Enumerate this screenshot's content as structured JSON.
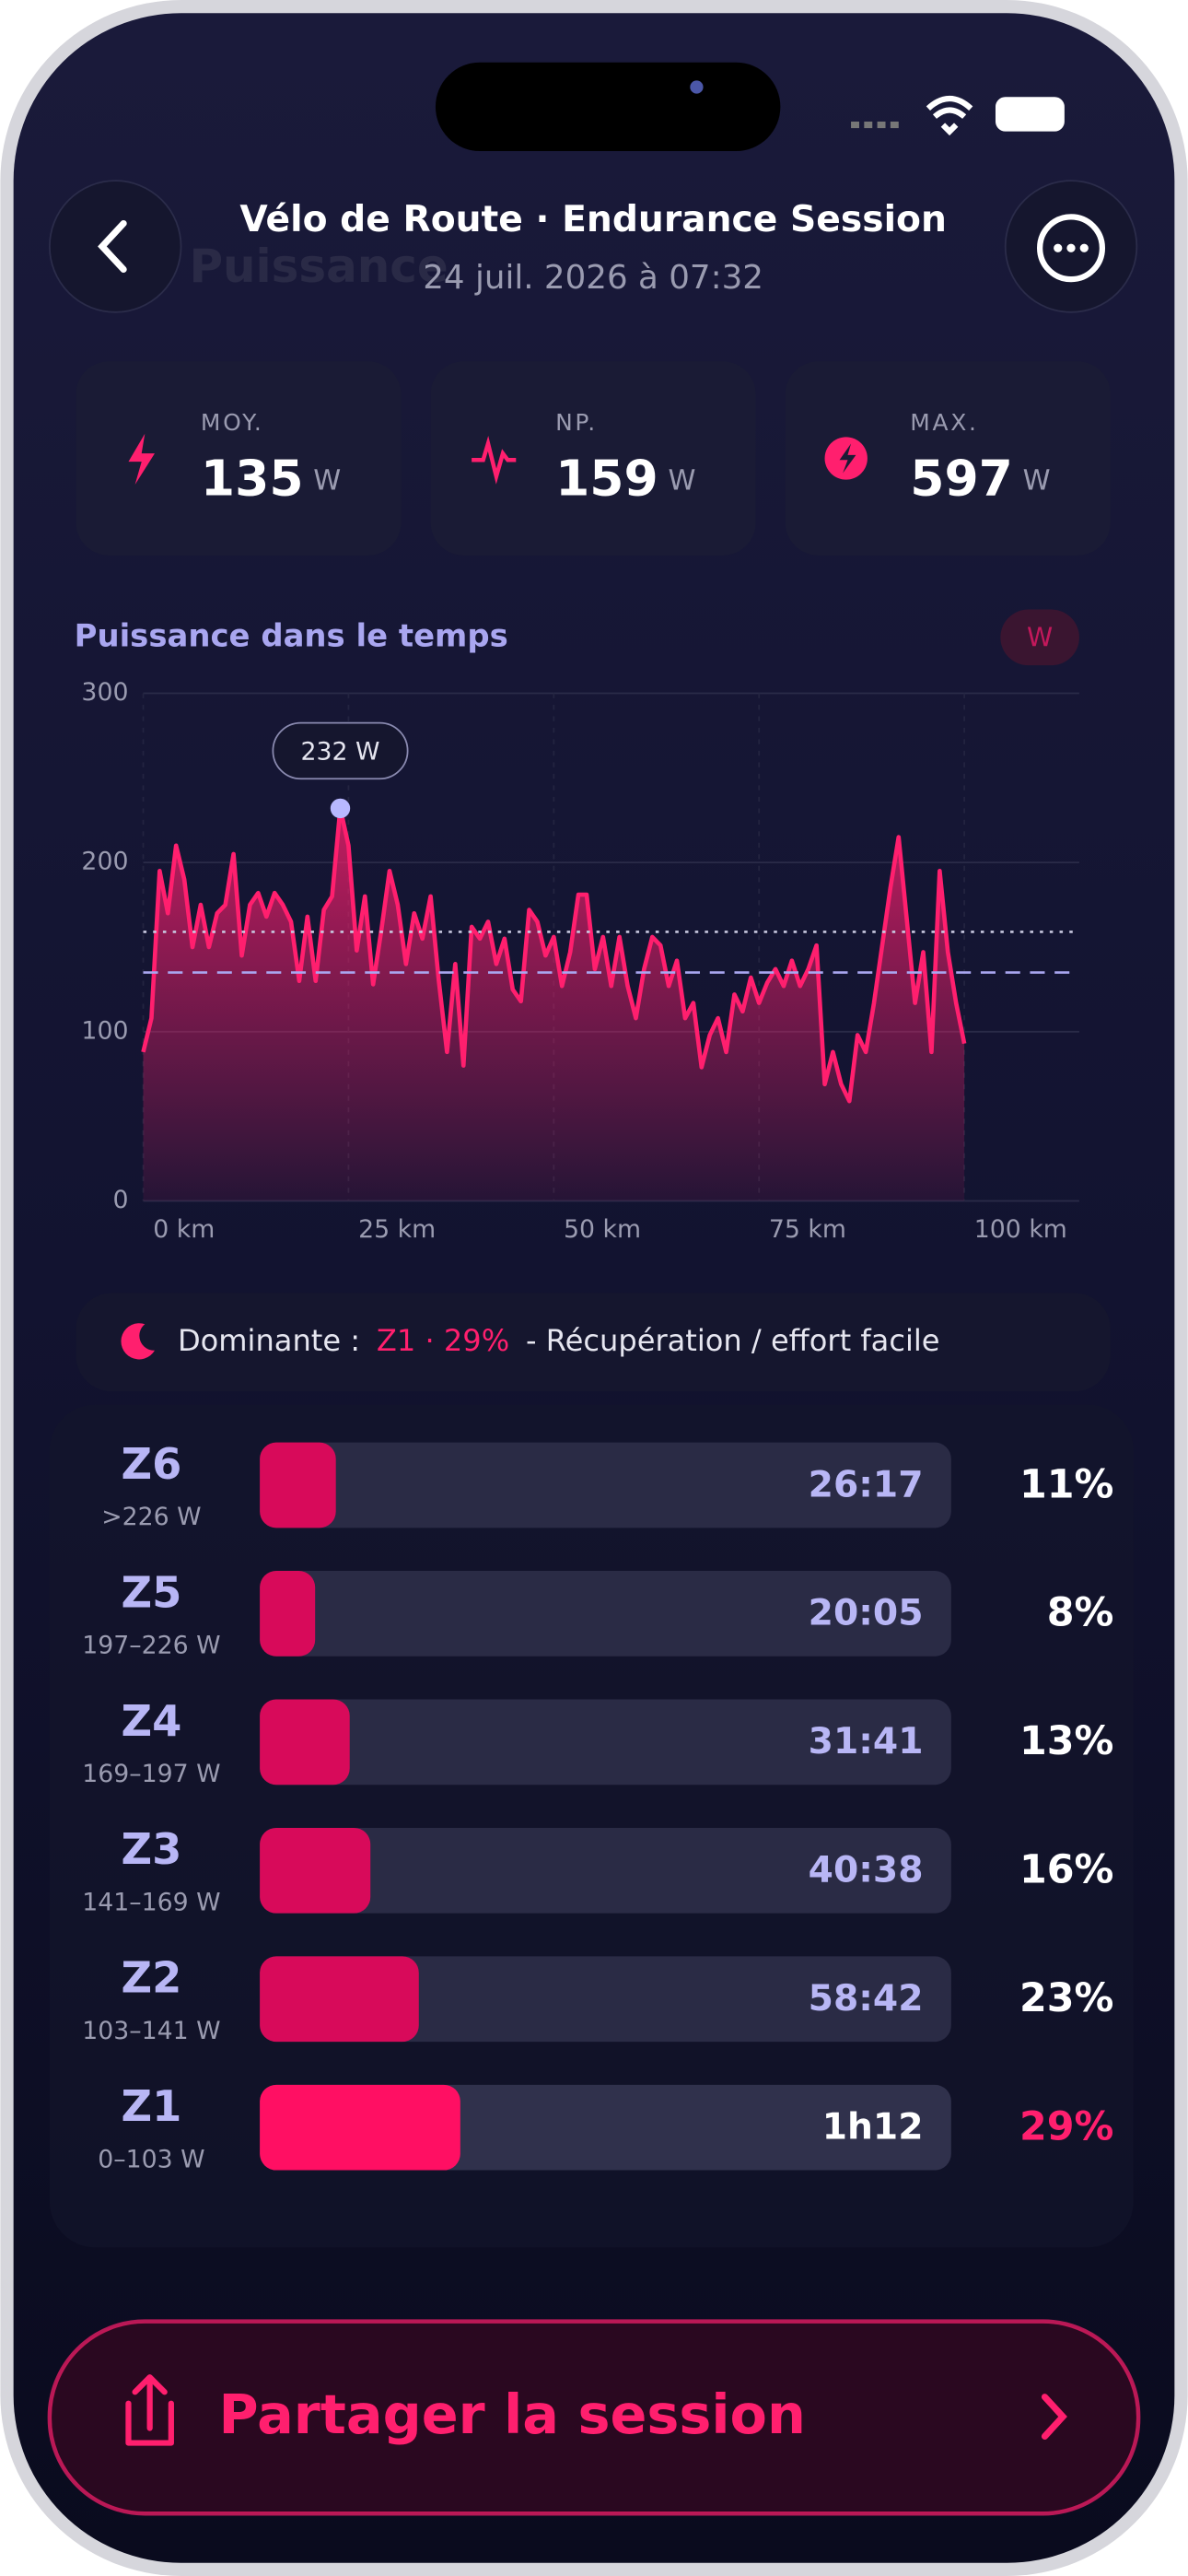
{
  "header": {
    "ghost": "Puissance",
    "title": "Vélo de Route · Endurance Session",
    "subtitle": "24 juil. 2026 à 07:32"
  },
  "stats": [
    {
      "label": "MOY.",
      "value": 135,
      "unit": "W"
    },
    {
      "label": "NP.",
      "value": 159,
      "unit": "W"
    },
    {
      "label": "MAX.",
      "value": 597,
      "unit": "W"
    }
  ],
  "chart_data": {
    "type": "line",
    "title": "Puissance dans le temps",
    "unit_badge": "W",
    "color": "#ff1f6e",
    "x": [
      0,
      1,
      2,
      3,
      4,
      5,
      6,
      7,
      8,
      9,
      10,
      11,
      12,
      13,
      14,
      15,
      16,
      17,
      18,
      19,
      20,
      21,
      22,
      23,
      24,
      25,
      26,
      27,
      28,
      29,
      30,
      31,
      32,
      33,
      34,
      35,
      36,
      37,
      38,
      39,
      40,
      41,
      42,
      43,
      44,
      45,
      46,
      47,
      48,
      49,
      50,
      51,
      52,
      53,
      54,
      55,
      56,
      57,
      58,
      59,
      60,
      61,
      62,
      63,
      64,
      65,
      66,
      67,
      68,
      69,
      70,
      71,
      72,
      73,
      74,
      75,
      76,
      77,
      78,
      79,
      80,
      81,
      82,
      83,
      84,
      85,
      86,
      87,
      88,
      89,
      90,
      91,
      92,
      93,
      94,
      95,
      96,
      97,
      98,
      99,
      100
    ],
    "values": [
      88,
      108,
      195,
      170,
      210,
      190,
      150,
      175,
      150,
      170,
      175,
      205,
      145,
      175,
      182,
      168,
      182,
      175,
      165,
      130,
      168,
      130,
      172,
      180,
      232,
      210,
      148,
      180,
      128,
      160,
      195,
      175,
      140,
      170,
      155,
      180,
      130,
      88,
      140,
      80,
      162,
      155,
      165,
      140,
      155,
      125,
      118,
      172,
      165,
      145,
      156,
      127,
      147,
      181,
      181,
      137,
      156,
      127,
      156,
      127,
      108,
      137,
      156,
      151,
      127,
      142,
      108,
      117,
      79,
      98,
      108,
      88,
      122,
      112,
      132,
      117,
      129,
      137,
      127,
      142,
      127,
      137,
      151,
      69,
      88,
      69,
      59,
      98,
      88,
      117,
      151,
      185,
      215,
      166,
      117,
      147,
      88,
      195,
      147,
      117,
      93
    ],
    "xlim": [
      0,
      114
    ],
    "ylim": [
      0,
      300
    ],
    "xticks": [
      {
        "value": 0,
        "label": "0 km"
      },
      {
        "value": 25,
        "label": "25 km"
      },
      {
        "value": 50,
        "label": "50 km"
      },
      {
        "value": 75,
        "label": "75 km"
      },
      {
        "value": 100,
        "label": "100 km"
      }
    ],
    "yticks": [
      0,
      100,
      200,
      300
    ],
    "grid": true,
    "annotation": {
      "x": 24,
      "y": 232,
      "label": "232 W"
    }
  },
  "dominant": {
    "label": "Dominante :",
    "zone": "Z1 · 29%",
    "description": "- Récupération / effort facile"
  },
  "zones": [
    {
      "name": "Z6",
      "range": ">226 W",
      "time": "26:17",
      "percent": 11,
      "percent_label": "11%"
    },
    {
      "name": "Z5",
      "range": "197–226 W",
      "time": "20:05",
      "percent": 8,
      "percent_label": "8%"
    },
    {
      "name": "Z4",
      "range": "169–197 W",
      "time": "31:41",
      "percent": 13,
      "percent_label": "13%"
    },
    {
      "name": "Z3",
      "range": "141–169 W",
      "time": "40:38",
      "percent": 16,
      "percent_label": "16%"
    },
    {
      "name": "Z2",
      "range": "103–141 W",
      "time": "58:42",
      "percent": 23,
      "percent_label": "23%"
    },
    {
      "name": "Z1",
      "range": "0–103 W",
      "time": "1h12",
      "percent": 29,
      "percent_label": "29%"
    }
  ],
  "share": "Partager la session"
}
